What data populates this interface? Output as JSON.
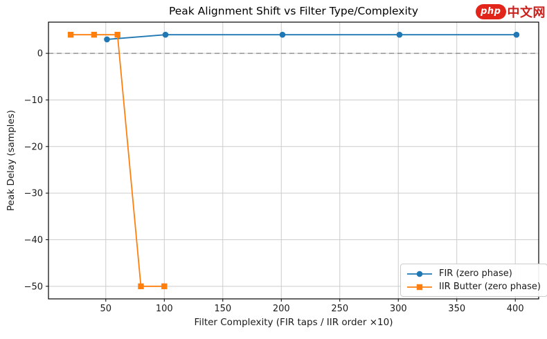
{
  "logo": {
    "badge_text": "php",
    "suffix_text": "中文网",
    "badge_color": "#e1251b",
    "suffix_color": "#c9201c"
  },
  "chart_data": {
    "type": "line",
    "title": "Peak Alignment Shift vs Filter Type/Complexity",
    "xlabel": "Filter Complexity (FIR taps / IIR order ×10)",
    "ylabel": "Peak Delay (samples)",
    "xlim": [
      1,
      420
    ],
    "ylim": [
      -52.7,
      6.7
    ],
    "x_ticks": [
      50,
      100,
      150,
      200,
      250,
      300,
      350,
      400
    ],
    "x_tick_labels": [
      "50",
      "100",
      "150",
      "200",
      "250",
      "300",
      "350",
      "400"
    ],
    "y_ticks": [
      0,
      -10,
      -20,
      -30,
      -40,
      -50
    ],
    "y_tick_labels": [
      "0",
      "−10",
      "−20",
      "−30",
      "−40",
      "−50"
    ],
    "grid": true,
    "grid_color": "#cccccc",
    "axis_color": "#000000",
    "zero_line": {
      "y": 0,
      "style": "dashed",
      "color": "#7f7f7f"
    },
    "legend_position": "lower right",
    "series": [
      {
        "name": "FIR (zero phase)",
        "color": "#1f77b4",
        "marker": "circle",
        "x": [
          51,
          101,
          201,
          301,
          401
        ],
        "y": [
          3,
          4,
          4,
          4,
          4
        ]
      },
      {
        "name": "IIR Butter (zero phase)",
        "color": "#ff7f0e",
        "marker": "square",
        "x": [
          20,
          40,
          60,
          80,
          100
        ],
        "y": [
          4,
          4,
          4,
          -50,
          -50
        ]
      }
    ]
  }
}
